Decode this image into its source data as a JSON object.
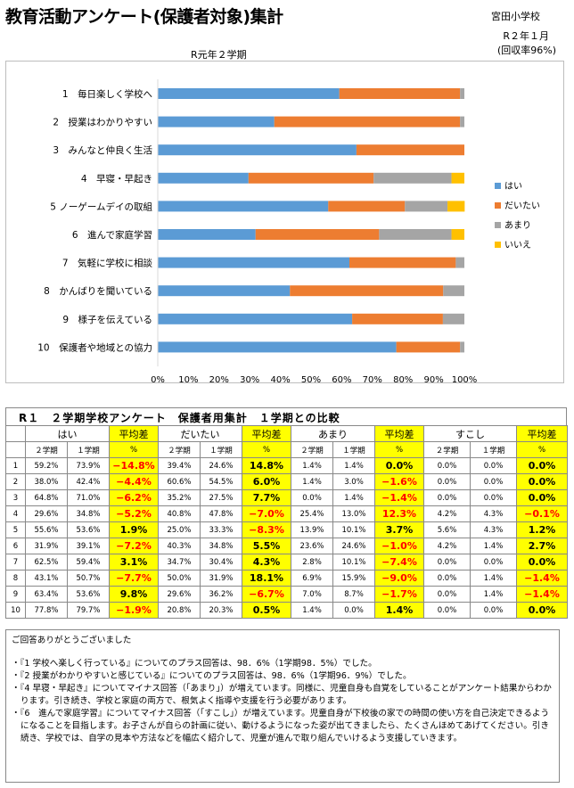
{
  "header": {
    "title": "教育活動アンケート(保護者対象)集計",
    "school": "宮田小学校",
    "date": "R２年１月",
    "rate": "(回収率96%)",
    "period": "R元年２学期"
  },
  "chart_data": {
    "type": "bar",
    "orientation": "horizontal",
    "stacked": "percent",
    "categories": [
      "1　毎日楽しく学校へ",
      "2　授業はわかりやすい",
      "3　みんなと仲良く生活",
      "4　早寝・早起き",
      "5 ノーゲームデイの取組",
      "6　進んで家庭学習",
      "7　気軽に学校に相談",
      "8　かんばりを聞いている",
      "9　様子を伝えている",
      "10　保護者や地域との協力"
    ],
    "series": [
      {
        "name": "はい",
        "color": "#5b9bd5",
        "values": [
          59.2,
          38.0,
          64.8,
          29.6,
          55.6,
          31.9,
          62.5,
          43.1,
          63.4,
          77.8
        ]
      },
      {
        "name": "だいたい",
        "color": "#ed7d31",
        "values": [
          39.4,
          60.6,
          35.2,
          40.8,
          25.0,
          40.3,
          34.7,
          50.0,
          29.6,
          20.8
        ]
      },
      {
        "name": "あまり",
        "color": "#a5a5a5",
        "values": [
          1.4,
          1.4,
          0.0,
          25.4,
          13.9,
          23.6,
          2.8,
          6.9,
          7.0,
          1.4
        ]
      },
      {
        "name": "いいえ",
        "color": "#ffc000",
        "values": [
          0.0,
          0.0,
          0.0,
          4.2,
          5.6,
          4.2,
          0.0,
          0.0,
          0.0,
          0.0
        ]
      }
    ],
    "xticks": [
      "0%",
      "10%",
      "20%",
      "30%",
      "40%",
      "50%",
      "60%",
      "70%",
      "80%",
      "90%",
      "100%"
    ],
    "xlim": [
      0,
      100
    ],
    "grid": false,
    "legend": "right"
  },
  "table": {
    "title": "R１　２学期学校アンケート　保護者用集計　１学期との比較",
    "groups": [
      "はい",
      "だいたい",
      "あまり",
      "すこし"
    ],
    "diff_header": "平均差",
    "sub_term2": "２学期",
    "sub_term1": "１学期",
    "sub_pct": "%",
    "rows": [
      {
        "no": "1",
        "vals": [
          [
            "59.2%",
            "73.9%",
            "−14.8%",
            true
          ],
          [
            "39.4%",
            "24.6%",
            "14.8%",
            false
          ],
          [
            "1.4%",
            "1.4%",
            "0.0%",
            false
          ],
          [
            "0.0%",
            "0.0%",
            "0.0%",
            false
          ]
        ]
      },
      {
        "no": "2",
        "vals": [
          [
            "38.0%",
            "42.4%",
            "−4.4%",
            true
          ],
          [
            "60.6%",
            "54.5%",
            "6.0%",
            false
          ],
          [
            "1.4%",
            "3.0%",
            "−1.6%",
            true
          ],
          [
            "0.0%",
            "0.0%",
            "0.0%",
            false
          ]
        ]
      },
      {
        "no": "3",
        "vals": [
          [
            "64.8%",
            "71.0%",
            "−6.2%",
            true
          ],
          [
            "35.2%",
            "27.5%",
            "7.7%",
            false
          ],
          [
            "0.0%",
            "1.4%",
            "−1.4%",
            true
          ],
          [
            "0.0%",
            "0.0%",
            "0.0%",
            false
          ]
        ]
      },
      {
        "no": "4",
        "vals": [
          [
            "29.6%",
            "34.8%",
            "−5.2%",
            true
          ],
          [
            "40.8%",
            "47.8%",
            "−7.0%",
            true
          ],
          [
            "25.4%",
            "13.0%",
            "12.3%",
            true
          ],
          [
            "4.2%",
            "4.3%",
            "−0.1%",
            true
          ]
        ]
      },
      {
        "no": "5",
        "vals": [
          [
            "55.6%",
            "53.6%",
            "1.9%",
            false
          ],
          [
            "25.0%",
            "33.3%",
            "−8.3%",
            true
          ],
          [
            "13.9%",
            "10.1%",
            "3.7%",
            false
          ],
          [
            "5.6%",
            "4.3%",
            "1.2%",
            false
          ]
        ]
      },
      {
        "no": "6",
        "vals": [
          [
            "31.9%",
            "39.1%",
            "−7.2%",
            true
          ],
          [
            "40.3%",
            "34.8%",
            "5.5%",
            false
          ],
          [
            "23.6%",
            "24.6%",
            "−1.0%",
            true
          ],
          [
            "4.2%",
            "1.4%",
            "2.7%",
            false
          ]
        ]
      },
      {
        "no": "7",
        "vals": [
          [
            "62.5%",
            "59.4%",
            "3.1%",
            false
          ],
          [
            "34.7%",
            "30.4%",
            "4.3%",
            false
          ],
          [
            "2.8%",
            "10.1%",
            "−7.4%",
            true
          ],
          [
            "0.0%",
            "0.0%",
            "0.0%",
            false
          ]
        ]
      },
      {
        "no": "8",
        "vals": [
          [
            "43.1%",
            "50.7%",
            "−7.7%",
            true
          ],
          [
            "50.0%",
            "31.9%",
            "18.1%",
            false
          ],
          [
            "6.9%",
            "15.9%",
            "−9.0%",
            true
          ],
          [
            "0.0%",
            "1.4%",
            "−1.4%",
            true
          ]
        ]
      },
      {
        "no": "9",
        "vals": [
          [
            "63.4%",
            "53.6%",
            "9.8%",
            false
          ],
          [
            "29.6%",
            "36.2%",
            "−6.7%",
            true
          ],
          [
            "7.0%",
            "8.7%",
            "−1.7%",
            true
          ],
          [
            "0.0%",
            "1.4%",
            "−1.4%",
            true
          ]
        ]
      },
      {
        "no": "10",
        "vals": [
          [
            "77.8%",
            "79.7%",
            "−1.9%",
            true
          ],
          [
            "20.8%",
            "20.3%",
            "0.5%",
            false
          ],
          [
            "1.4%",
            "0.0%",
            "1.4%",
            false
          ],
          [
            "0.0%",
            "0.0%",
            "0.0%",
            false
          ]
        ]
      }
    ]
  },
  "notes": {
    "thanks": "ご回答ありがとうございました",
    "items": [
      "・『1 学校へ楽しく行っている』についてのプラス回答は、98．6%（1学期98．5%）でした。",
      "・『2 授業がわかりやすいと感じている』についてのプラス回答は、98．6%（1学期96．9%）でした。",
      "・『4 早寝・早起き』についてマイナス回答（「あまり」）が増えています。同様に、児童自身も自覚をしていることがアンケート結果からわかります。引き続き、学校と家庭の両方で、根気よく指導や支援を行う必要があります。",
      "・『6　進んで家庭学習』についてマイナス回答（「すこし」）が増えています。児童自身が下校後の家での時間の使い方を自己決定できるようになることを目指します。お子さんが自らの計画に従い、動けるようになった姿が出てきましたら、たくさんほめてあげてください。引き続き、学校では、自学の見本や方法などを幅広く紹介して、児童が進んで取り組んでいけるよう支援していきます。"
    ]
  }
}
